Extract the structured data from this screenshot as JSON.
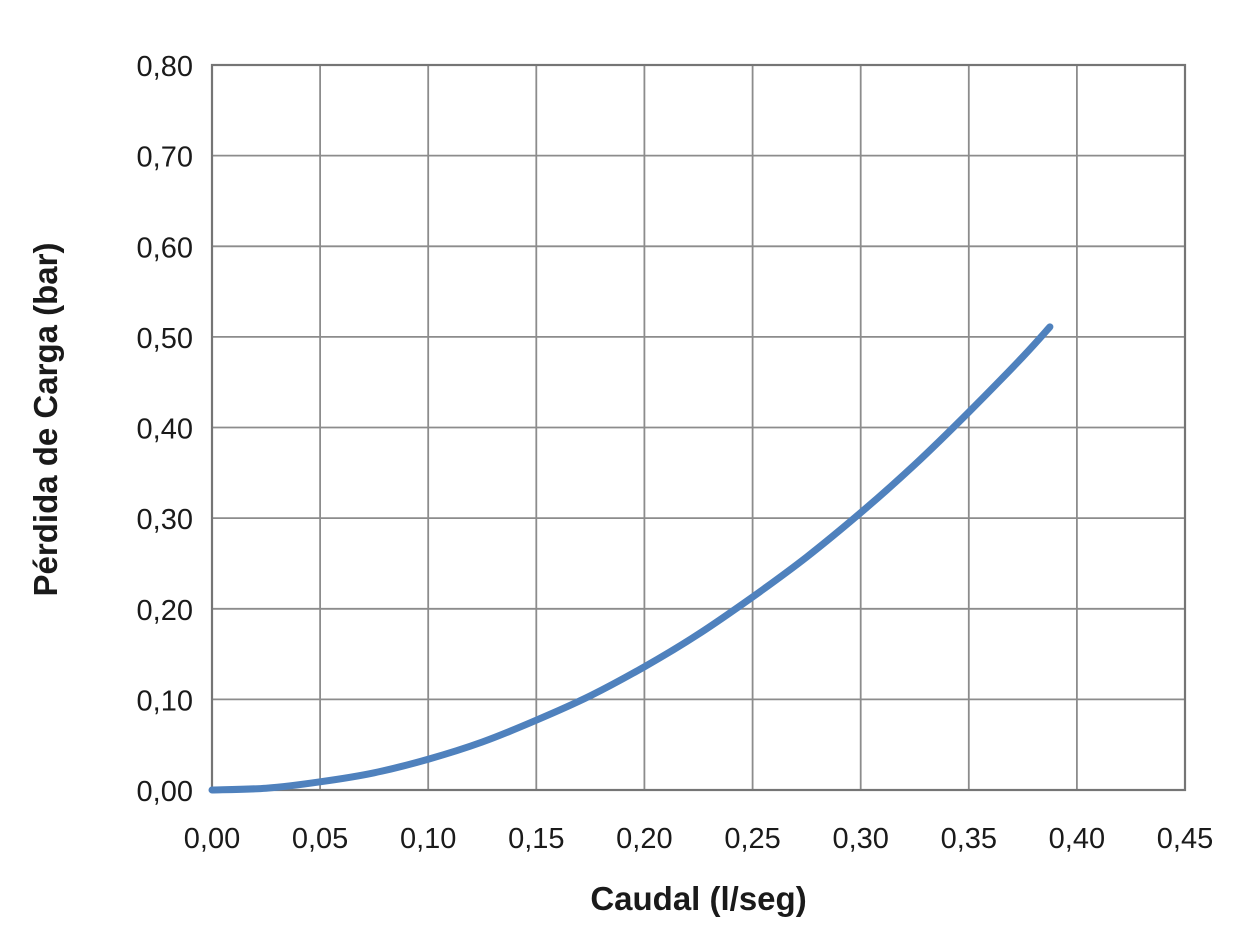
{
  "page": {
    "background": "#ffffff"
  },
  "chart_data": {
    "type": "line",
    "title": "",
    "xlabel": "Caudal (l/seg)",
    "ylabel": "Pérdida de Carga (bar)",
    "xlim": [
      0.0,
      0.45
    ],
    "ylim": [
      0.0,
      0.8
    ],
    "grid": true,
    "legend": false,
    "x_ticks": {
      "values": [
        0.0,
        0.05,
        0.1,
        0.15,
        0.2,
        0.25,
        0.3,
        0.35,
        0.4,
        0.45
      ],
      "labels": [
        "0,00",
        "0,05",
        "0,10",
        "0,15",
        "0,20",
        "0,25",
        "0,30",
        "0,35",
        "0,40",
        "0,45"
      ]
    },
    "y_ticks": {
      "values": [
        0.0,
        0.1,
        0.2,
        0.3,
        0.4,
        0.5,
        0.6,
        0.7,
        0.8
      ],
      "labels": [
        "0,00",
        "0,10",
        "0,20",
        "0,30",
        "0,40",
        "0,50",
        "0,60",
        "0,70",
        "0,80"
      ]
    },
    "series": [
      {
        "name": "perdida-de-carga-vs-caudal",
        "color": "#4F81BD",
        "stroke_width": 7,
        "points": [
          [
            0.0,
            0.0
          ],
          [
            0.025,
            0.002
          ],
          [
            0.05,
            0.009
          ],
          [
            0.075,
            0.019
          ],
          [
            0.1,
            0.034
          ],
          [
            0.125,
            0.053
          ],
          [
            0.15,
            0.077
          ],
          [
            0.175,
            0.104
          ],
          [
            0.2,
            0.136
          ],
          [
            0.225,
            0.172
          ],
          [
            0.25,
            0.213
          ],
          [
            0.275,
            0.257
          ],
          [
            0.3,
            0.306
          ],
          [
            0.325,
            0.359
          ],
          [
            0.35,
            0.417
          ],
          [
            0.375,
            0.478
          ],
          [
            0.3875,
            0.511
          ]
        ]
      }
    ],
    "colors": {
      "gridline": "#8c8c8c",
      "border": "#757575",
      "text": "#1a1a1a"
    }
  }
}
